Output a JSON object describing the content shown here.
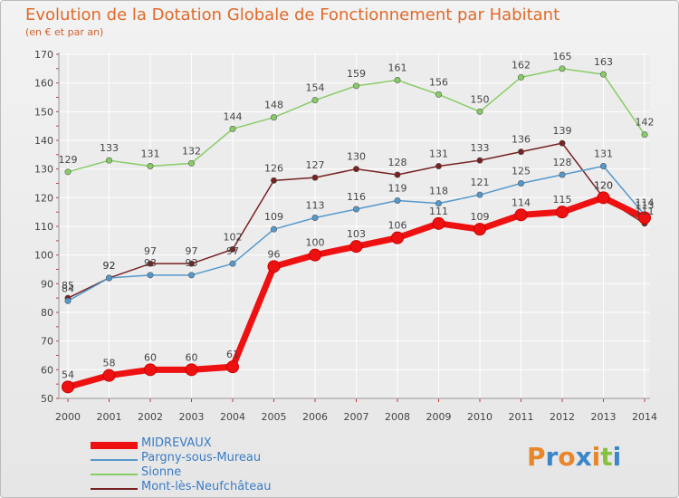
{
  "title": "Evolution de la Dotation Globale de Fonctionnement par Habitant",
  "subtitle": "(en € et par an)",
  "logo_text": "Proxiti",
  "colors": {
    "background": "#eeeeee",
    "grid": "#ffffff",
    "axis_text": "#444444",
    "title": "#e06a2a"
  },
  "chart_data": {
    "type": "line",
    "x": [
      "2000",
      "2001",
      "2002",
      "2003",
      "2004",
      "2005",
      "2006",
      "2007",
      "2008",
      "2009",
      "2010",
      "2011",
      "2012",
      "2013",
      "2014"
    ],
    "ylim": [
      50,
      170
    ],
    "yticks": [
      50,
      60,
      70,
      80,
      90,
      100,
      110,
      120,
      130,
      140,
      150,
      160,
      170
    ],
    "grid": true,
    "legend_position": "bottom-left",
    "series": [
      {
        "name": "MIDREVAUX",
        "color": "#ee1111",
        "values": [
          54,
          58,
          60,
          60,
          61,
          96,
          100,
          103,
          106,
          111,
          109,
          114,
          115,
          120,
          113
        ],
        "labels": [
          "54",
          "58",
          "60",
          "60",
          "61",
          "96",
          "100",
          "103",
          "106",
          "111",
          "109",
          "114",
          "115",
          "120",
          "113"
        ]
      },
      {
        "name": "Pargny-sous-Mureau",
        "color": "#5599cc",
        "values": [
          84,
          92,
          93,
          93,
          97,
          109,
          113,
          116,
          119,
          118,
          121,
          125,
          128,
          131,
          114
        ],
        "labels": [
          "84",
          "92",
          "93",
          "93",
          "97",
          "109",
          "113",
          "116",
          "119",
          "118",
          "121",
          "125",
          "128",
          "131",
          "114"
        ]
      },
      {
        "name": "Sionne",
        "color": "#88cc66",
        "values": [
          129,
          133,
          131,
          132,
          144,
          148,
          154,
          159,
          161,
          156,
          150,
          162,
          165,
          163,
          142
        ],
        "labels": [
          "129",
          "133",
          "131",
          "132",
          "144",
          "148",
          "154",
          "159",
          "161",
          "156",
          "150",
          "162",
          "165",
          "163",
          "142"
        ]
      },
      {
        "name": "Mont-lès-Neufchâteau",
        "color": "#772222",
        "values": [
          85,
          92,
          97,
          97,
          102,
          126,
          127,
          130,
          128,
          131,
          133,
          136,
          139,
          120,
          111
        ],
        "labels": [
          "85",
          "92",
          "97",
          "97",
          "102",
          "126",
          "127",
          "130",
          "128",
          "131",
          "133",
          "136",
          "139",
          "120",
          "111"
        ]
      }
    ]
  }
}
